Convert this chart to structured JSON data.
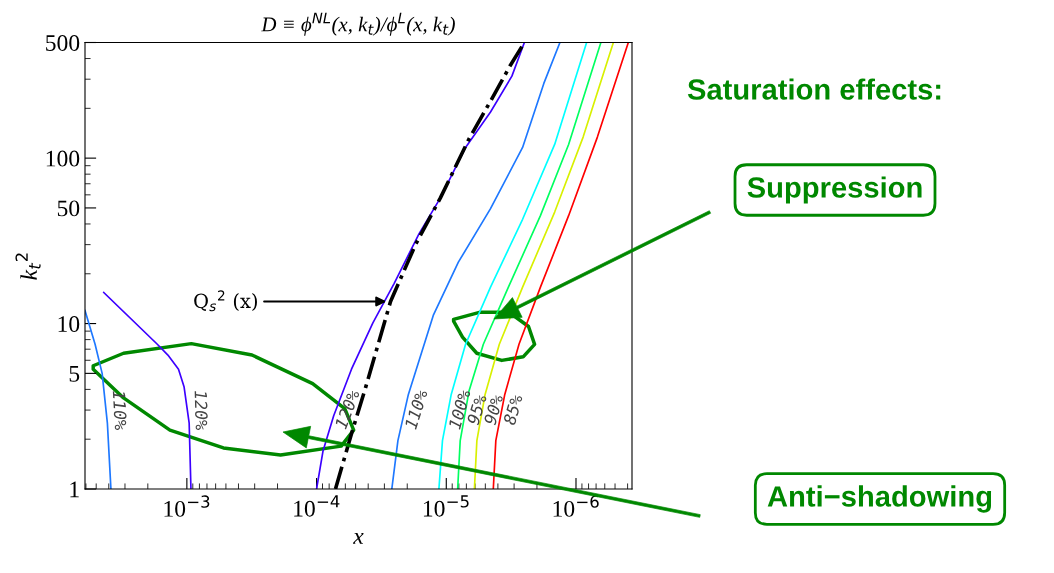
{
  "chart_data": {
    "type": "line",
    "title": "D ≡ ϕ$^{NL}$(x, k$_{t}$)/ϕ$^{L}$(x, k$_{t}$)",
    "xlabel": "x",
    "ylabel": "k$_{t}$$^{2}$",
    "log": "xy",
    "xlim": [
      0.0061,
      3.7e-07
    ],
    "ylim": [
      1,
      500
    ],
    "xticks": [
      {
        "value": 0.001,
        "label": "10$^{−3}$"
      },
      {
        "value": 0.0001,
        "label": "10$^{−4}$"
      },
      {
        "value": 1e-05,
        "label": "10$^{−5}$"
      },
      {
        "value": 1e-06,
        "label": "10$^{−6}$"
      }
    ],
    "yticks": [
      1,
      5,
      10,
      50,
      100,
      500
    ],
    "grid": false,
    "legend": false,
    "line_style": "solid",
    "marker": "none",
    "series": [
      {
        "name": "110%",
        "color": "#1e78ff",
        "x": [
          0.0061,
          0.0051,
          0.0045,
          0.0041,
          0.00385
        ],
        "values": [
          12.0,
          7.5,
          5.0,
          2.5,
          1
        ]
      },
      {
        "name": "120%",
        "color": "#3c00ff",
        "x": [
          0.00437,
          0.00169,
          0.0014,
          0.00116,
          0.00105,
          0.00096,
          0.00093
        ],
        "values": [
          15.4,
          7.5,
          6.45,
          5.3,
          4.13,
          2.5,
          1
        ]
      },
      {
        "name": "120%",
        "color": "#3c00ff",
        "x": [
          0.0001,
          8.93e-05,
          7.38e-05,
          5.38e-05,
          3.68e-05,
          2.52e-05,
          1.62e-05,
          1.11e-05,
          7.1e-06,
          4.56e-06,
          3.12e-06,
          2.5e-06
        ],
        "values": [
          1,
          1.69,
          2.77,
          5.3,
          10.1,
          17.5,
          35.0,
          57.5,
          116,
          190,
          313,
          500
        ]
      },
      {
        "name": "Q$_{s}$$^{2}$ (x)",
        "color": "#000000",
        "line_style": "dashdot",
        "x": [
          7.15e-05,
          5.38e-05,
          4.18e-05,
          2.69e-05,
          1.72e-05,
          1.11e-05,
          6.67e-06,
          4.56e-06,
          3.22e-06,
          2.5e-06
        ],
        "values": [
          1,
          2.16,
          4.13,
          13.6,
          30.2,
          57.5,
          131,
          221,
          362,
          500
        ]
      },
      {
        "name": "110%",
        "color": "#1e78ff",
        "x": [
          2.63e-05,
          2.36e-05,
          1.96e-05,
          1.26e-05,
          8.07e-06,
          4.56e-06,
          2.58e-06,
          1.77e-06,
          1.33e-06
        ],
        "values": [
          1,
          1.96,
          3.73,
          11.2,
          23.5,
          49.5,
          116,
          283,
          500
        ]
      },
      {
        "name": "100%",
        "color": "#00ffff",
        "x": [
          1.14e-05,
          1.07e-05,
          9.16e-06,
          7.1e-06,
          4.56e-06,
          2.58e-06,
          1.46e-06,
          8.28e-07
        ],
        "values": [
          1,
          1.96,
          3.73,
          7.5,
          16.6,
          42.7,
          121,
          500
        ]
      },
      {
        "name": "95%",
        "color": "#00ff60",
        "x": [
          8.17e-06,
          7.81e-06,
          6.67e-06,
          5.18e-06,
          3.32e-06,
          1.88e-06,
          1.14e-06,
          6.43e-07
        ],
        "values": [
          1,
          1.96,
          3.93,
          7.5,
          16.6,
          44.9,
          121,
          500
        ]
      },
      {
        "name": "90%",
        "color": "#d8f000",
        "x": [
          6.07e-06,
          5.81e-06,
          5.02e-06,
          3.9e-06,
          2.58e-06,
          1.46e-06,
          8.81e-07,
          5.15e-07
        ],
        "values": [
          1,
          1.96,
          3.73,
          7.5,
          16.6,
          47.2,
          134,
          500
        ]
      },
      {
        "name": "85%",
        "color": "#ff0000",
        "x": [
          4.34e-06,
          4.15e-06,
          3.54e-06,
          2.75e-06,
          1.88e-06,
          1.14e-06,
          6.84e-07,
          3.95e-07
        ],
        "values": [
          1,
          1.96,
          3.73,
          7.5,
          16.6,
          44.9,
          134,
          500
        ]
      }
    ],
    "annotations": [
      "Saturation effects:",
      "Suppression",
      "Anti−shadowing"
    ]
  }
}
